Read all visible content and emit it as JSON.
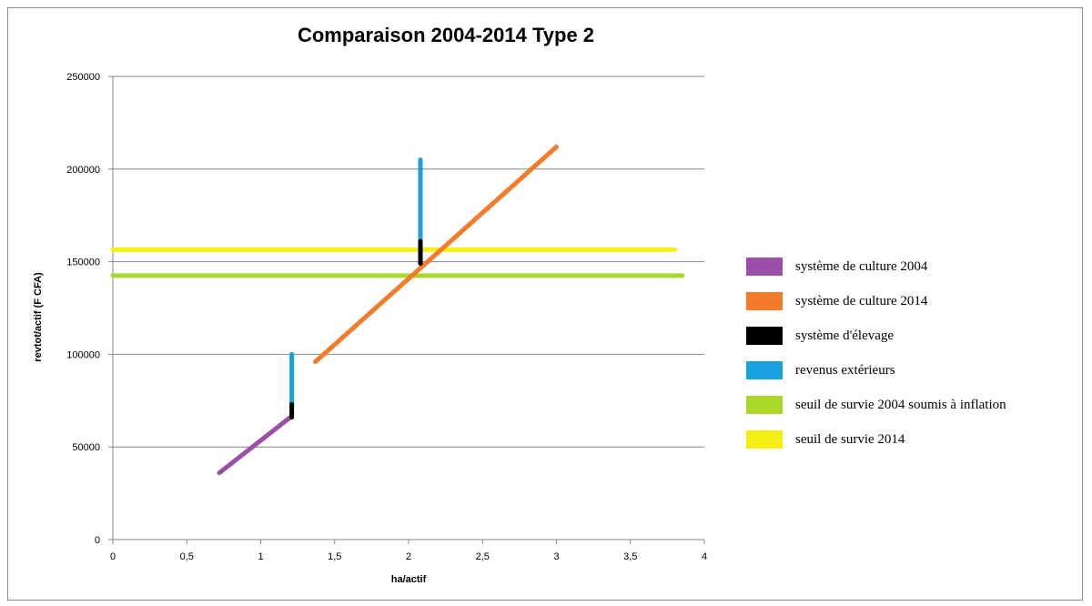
{
  "chart_data": {
    "type": "line",
    "title": "Comparaison 2004-2014 Type 2",
    "xlabel": "ha/actif",
    "ylabel": "revtot/actif (F CFA)",
    "xlim": [
      0,
      4
    ],
    "ylim": [
      0,
      250000
    ],
    "x_ticks": [
      "0",
      "0,5",
      "1",
      "1,5",
      "2",
      "2,5",
      "3",
      "3,5",
      "4"
    ],
    "y_ticks": [
      "0",
      "50000",
      "100000",
      "150000",
      "200000",
      "250000"
    ],
    "grid": "horizontal",
    "legend_position": "right",
    "series": [
      {
        "name": "système de culture 2004",
        "color": "#9b4fa8",
        "points": [
          [
            0.72,
            36000
          ],
          [
            1.2,
            66000
          ]
        ]
      },
      {
        "name": "système de culture 2014",
        "color": "#f47b2a",
        "points": [
          [
            1.37,
            96000
          ],
          [
            3.0,
            212000
          ]
        ]
      },
      {
        "name": "système d'élevage",
        "color": "#000000",
        "segments": [
          [
            [
              1.21,
              66000
            ],
            [
              1.21,
              73000
            ]
          ],
          [
            [
              2.08,
              149000
            ],
            [
              2.08,
              161000
            ]
          ]
        ]
      },
      {
        "name": "revenus extérieurs",
        "color": "#1aa0df",
        "segments": [
          [
            [
              1.21,
              73000
            ],
            [
              1.21,
              100000
            ]
          ],
          [
            [
              2.08,
              161000
            ],
            [
              2.08,
              205000
            ]
          ]
        ]
      },
      {
        "name": "seuil de survie 2004 soumis à inflation",
        "color": "#a9d72a",
        "points": [
          [
            0.0,
            142500
          ],
          [
            3.85,
            142500
          ]
        ]
      },
      {
        "name": "seuil de survie 2014",
        "color": "#f5ef16",
        "points": [
          [
            0.0,
            156500
          ],
          [
            3.8,
            156500
          ]
        ]
      }
    ]
  }
}
